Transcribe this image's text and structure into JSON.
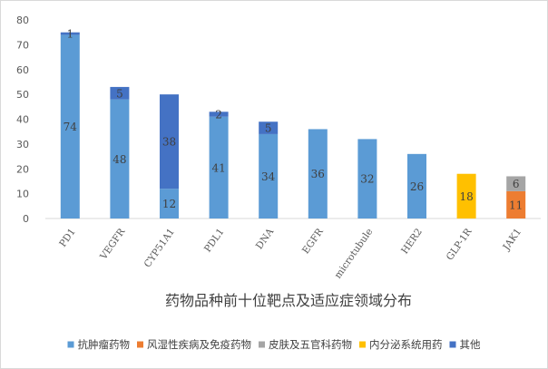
{
  "chart_data": {
    "type": "bar",
    "stacked": true,
    "title": "药物品种前十位靶点及适应症领域分布",
    "categories": [
      "PD1",
      "VEGFR",
      "CYP51A1",
      "PDL1",
      "DNA",
      "EGFR",
      "microtubule",
      "HER2",
      "GLP-1R",
      "JAK1"
    ],
    "ylim": [
      0,
      80
    ],
    "yticks": [
      0,
      10,
      20,
      30,
      40,
      50,
      60,
      70,
      80
    ],
    "grid": false,
    "legend_position": "bottom",
    "series": [
      {
        "name": "抗肿瘤药物",
        "color": "#5b9bd5",
        "values": [
          74,
          48,
          12,
          41,
          34,
          36,
          32,
          26,
          null,
          null
        ]
      },
      {
        "name": "风湿性疾病及免疫药物",
        "color": "#ed7d31",
        "values": [
          null,
          null,
          null,
          null,
          null,
          null,
          null,
          null,
          null,
          11
        ]
      },
      {
        "name": "皮肤及五官科药物",
        "color": "#a5a5a5",
        "values": [
          null,
          null,
          null,
          null,
          null,
          null,
          null,
          null,
          null,
          6
        ]
      },
      {
        "name": "内分泌系统用药",
        "color": "#ffc000",
        "values": [
          null,
          null,
          null,
          null,
          null,
          null,
          null,
          null,
          18,
          null
        ]
      },
      {
        "name": "其他",
        "color": "#4472c4",
        "values": [
          1,
          5,
          38,
          2,
          5,
          null,
          null,
          null,
          null,
          null
        ]
      }
    ]
  }
}
